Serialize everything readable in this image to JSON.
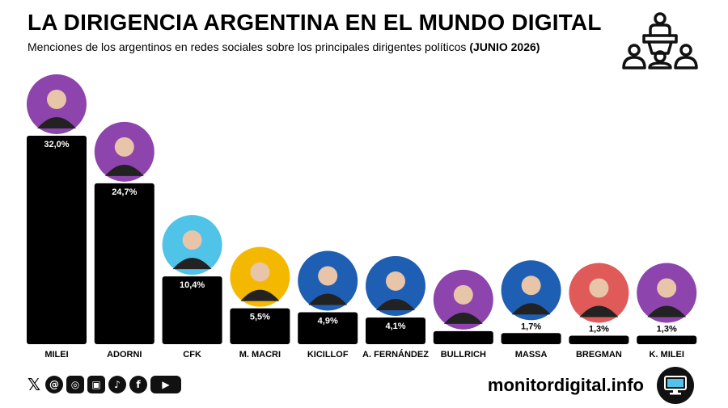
{
  "header": {
    "title": "LA DIRIGENCIA ARGENTINA EN EL MUNDO DIGITAL",
    "subtitle": "Menciones de los argentinos en redes sociales sobre los principales dirigentes políticos",
    "subtitle_bold": "(JUNIO 2026)",
    "logo_icon": "audience-podium-icon"
  },
  "chart_data": {
    "type": "bar",
    "categories": [
      "MILEI",
      "ADORNI",
      "CFK",
      "M. MACRI",
      "KICILLOF",
      "A. FERNÁNDEZ",
      "BULLRICH",
      "MASSA",
      "BREGMAN",
      "K. MILEI"
    ],
    "values": [
      32.0,
      24.7,
      10.4,
      5.5,
      4.9,
      4.1,
      null,
      1.7,
      1.3,
      1.3
    ],
    "approx_values": [
      32.0,
      24.7,
      10.4,
      5.5,
      4.9,
      4.1,
      2.0,
      1.7,
      1.3,
      1.3
    ],
    "labels": [
      "32,0%",
      "24,7%",
      "10,4%",
      "5,5%",
      "4,9%",
      "4,1%",
      "",
      "1,7%",
      "1,3%",
      "1,3%"
    ],
    "bar_color": "#000000",
    "photo_ring_colors": [
      "#8e44ad",
      "#8e44ad",
      "#4fc3e8",
      "#f5b800",
      "#1f5fb3",
      "#1f5fb3",
      "#8e44ad",
      "#1f5fb3",
      "#e05a5a",
      "#8e44ad"
    ],
    "grid": false,
    "ylim": [
      0,
      32
    ]
  },
  "footer": {
    "social_icons": [
      "x-icon",
      "threads-icon",
      "instagram-icon",
      "stamp-icon",
      "tiktok-icon",
      "facebook-icon",
      "youtube-icon"
    ],
    "social_glyphs": [
      "𝕏",
      "@",
      "◎",
      "▣",
      "♪",
      "f",
      "▶"
    ],
    "website": "monitordigital.info",
    "site_icon": "monitor-icon"
  }
}
